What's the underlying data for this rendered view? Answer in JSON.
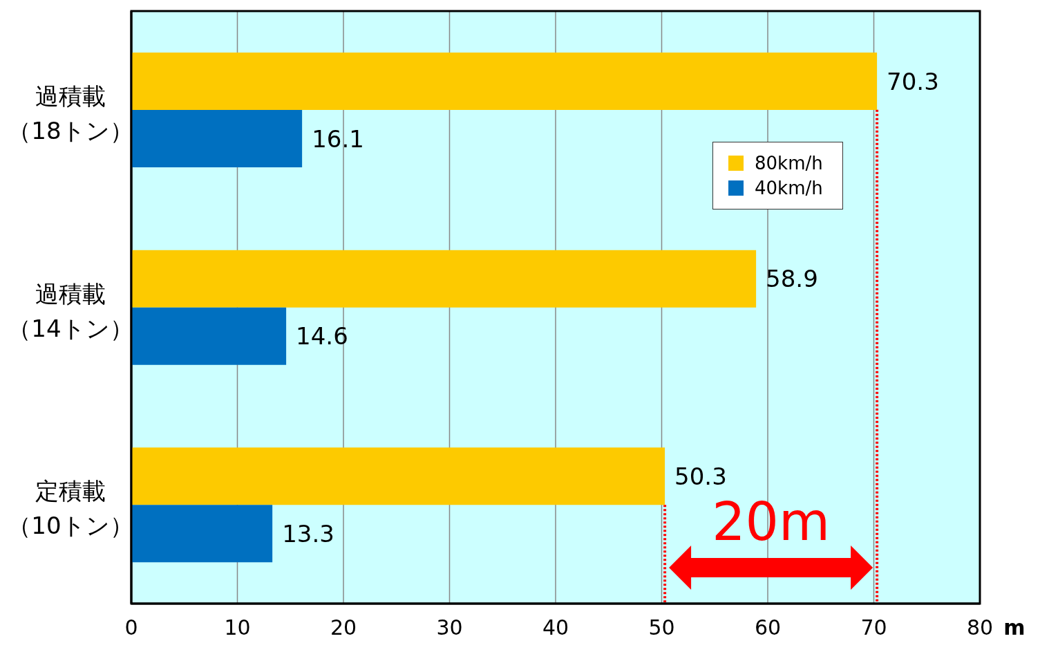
{
  "chart_data": {
    "type": "bar",
    "orientation": "horizontal",
    "categories": [
      "過積載（18トン）",
      "過積載（14トン）",
      "定積載（10トン）"
    ],
    "series": [
      {
        "name": "80km/h",
        "color": "#fdca00",
        "values": [
          70.3,
          58.9,
          50.3
        ]
      },
      {
        "name": "40km/h",
        "color": "#0070c0",
        "values": [
          16.1,
          14.6,
          13.3
        ]
      }
    ],
    "xlabel": "m",
    "xlim": [
      0,
      80
    ],
    "xticks": [
      0,
      10,
      20,
      30,
      40,
      50,
      60,
      70,
      80
    ],
    "grid": "x",
    "legend": "top right",
    "data_labels": true,
    "ref_lines": [
      {
        "axis": "x",
        "value": 70.3,
        "color": "#ff0000",
        "line_style": "dotted"
      },
      {
        "axis": "x",
        "value": 50.3,
        "color": "#ff0000",
        "line_style": "dotted"
      }
    ],
    "annotations": [
      "20m"
    ]
  }
}
